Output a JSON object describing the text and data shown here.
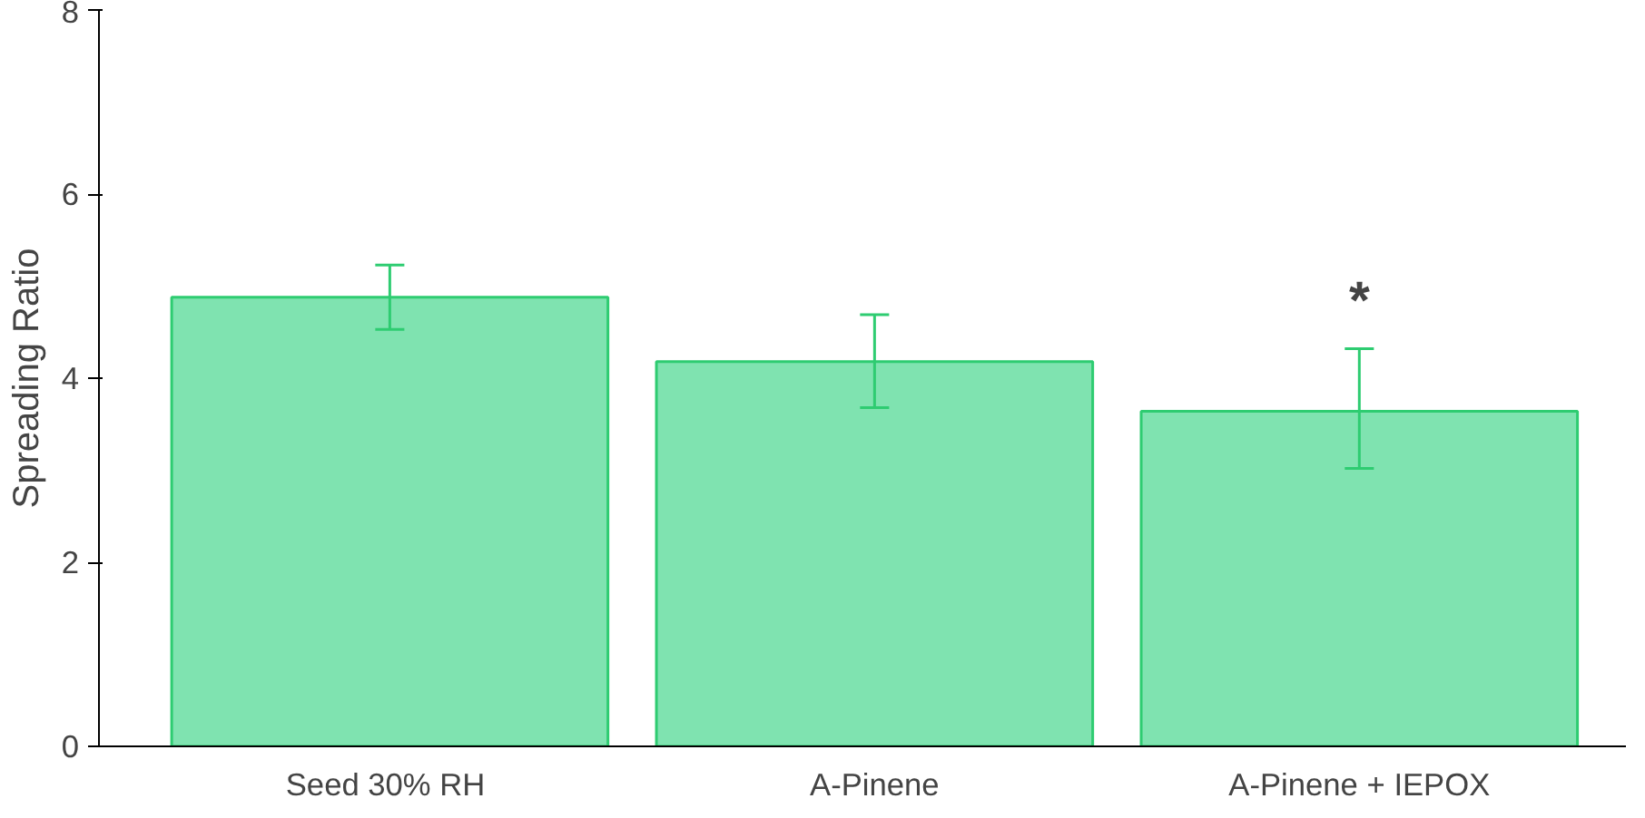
{
  "chart_data": {
    "type": "bar",
    "ylabel": "Spreading Ratio",
    "categories": [
      "Seed  30% RH",
      "A-Pinene",
      "A-Pinene + IEPOX"
    ],
    "values": [
      4.88,
      4.18,
      3.64
    ],
    "errors": [
      [
        4.53,
        5.23
      ],
      [
        3.68,
        4.69
      ],
      [
        3.02,
        4.32
      ]
    ],
    "color": "#7fe3b0",
    "ylim": [
      0,
      8
    ],
    "yticks": [
      0,
      2,
      4,
      6,
      8
    ],
    "grid": false,
    "annotations": [
      "*"
    ]
  }
}
